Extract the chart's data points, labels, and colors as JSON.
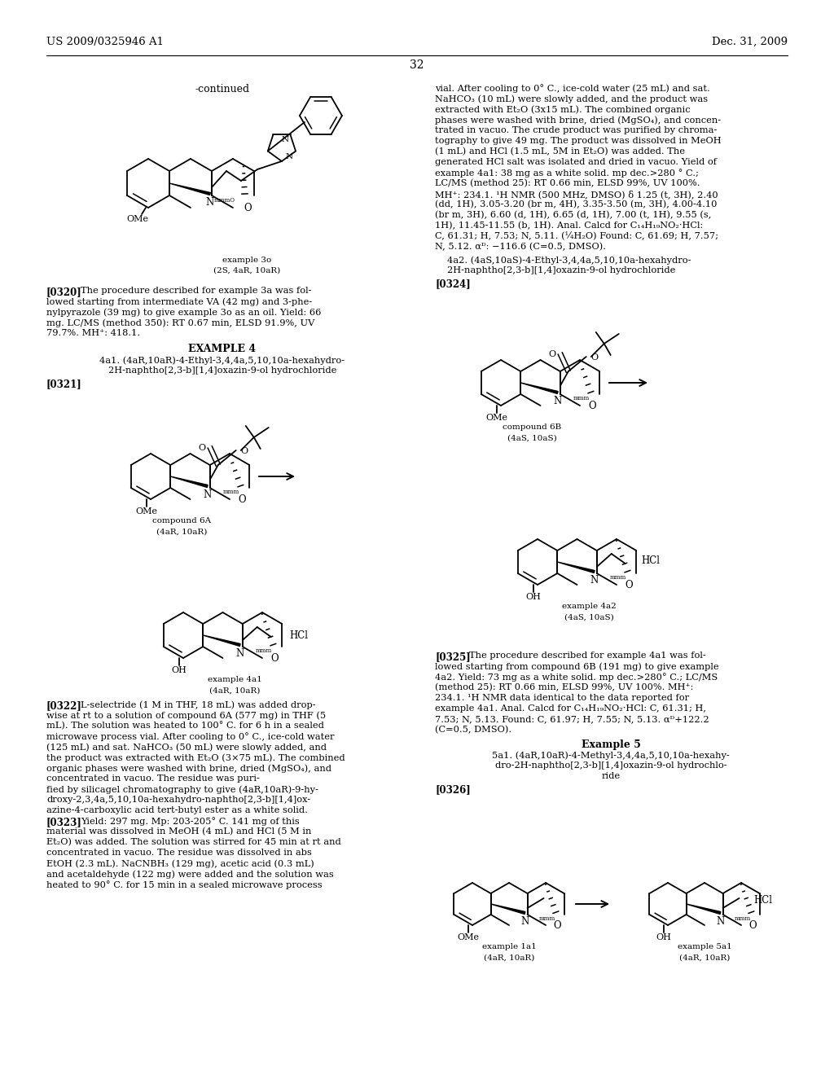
{
  "page_number": "32",
  "left_header": "US 2009/0325946 A1",
  "right_header": "Dec. 31, 2009",
  "bg_color": "#ffffff",
  "text_color": "#000000"
}
